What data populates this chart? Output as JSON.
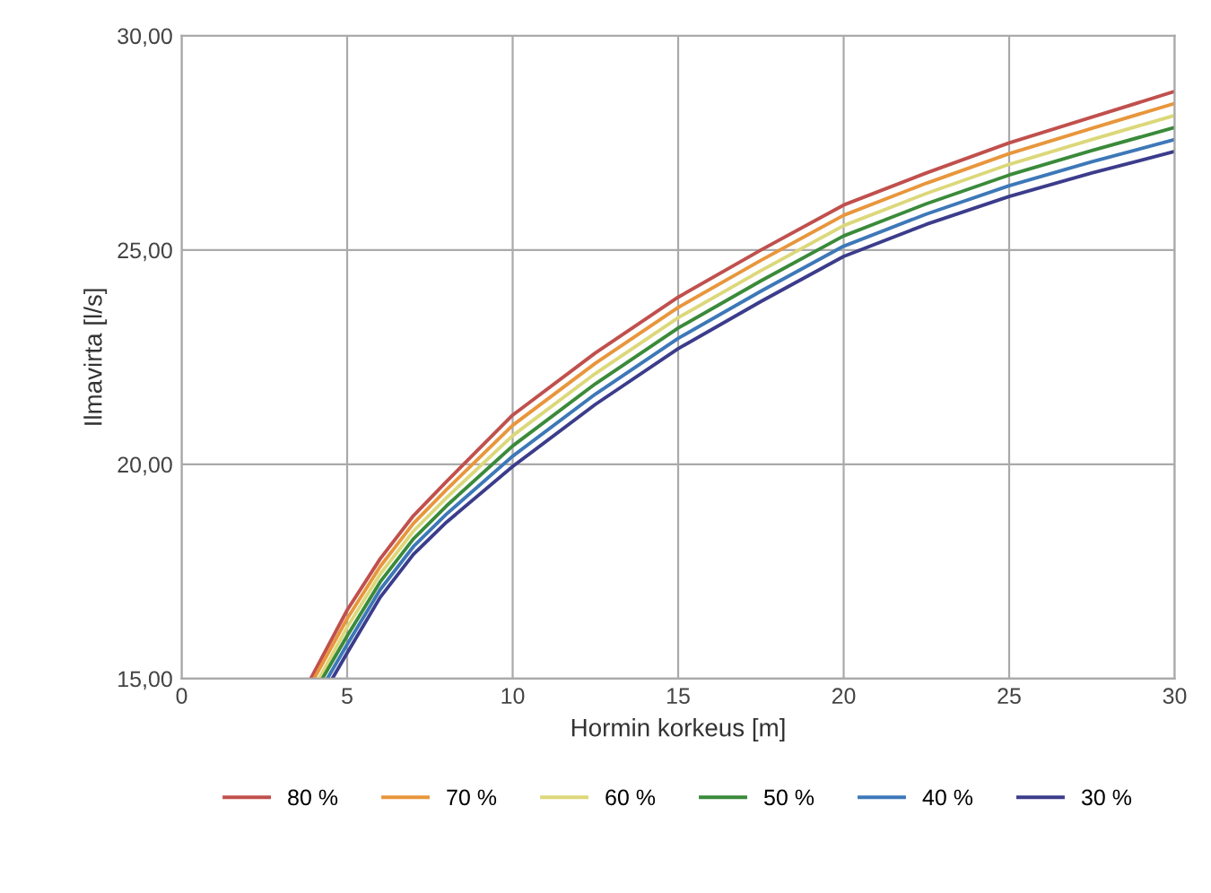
{
  "chart_data": {
    "type": "line",
    "xlabel": "Hormin korkeus [m]",
    "ylabel": "Ilmavirta [l/s]",
    "xlim": [
      0,
      30
    ],
    "xticks": [
      0,
      5,
      10,
      15,
      20,
      25,
      30
    ],
    "ylim": [
      15,
      30
    ],
    "yticks": [
      {
        "value": 15,
        "label": "15,00"
      },
      {
        "value": 20,
        "label": "20,00"
      },
      {
        "value": 25,
        "label": "25,00"
      },
      {
        "value": 30,
        "label": "30,00"
      }
    ],
    "grid": true,
    "legend": "bottom",
    "marker": "none",
    "line_style": "solid",
    "series": [
      {
        "name": "80 %",
        "color": "#c0504d",
        "x": [
          3.9,
          5,
          6,
          7,
          8,
          10,
          12.5,
          15,
          17.5,
          20,
          22.5,
          25,
          27.5,
          30
        ],
        "values": [
          15.0,
          16.6,
          17.8,
          18.8,
          19.6,
          21.15,
          22.6,
          23.9,
          25.0,
          26.05,
          26.8,
          27.5,
          28.1,
          28.7
        ]
      },
      {
        "name": "70 %",
        "color": "#e8963c",
        "x": [
          4.0,
          5,
          6,
          7,
          8,
          10,
          12.5,
          15,
          17.5,
          20,
          22.5,
          25,
          27.5,
          30
        ],
        "values": [
          15.0,
          16.4,
          17.62,
          18.62,
          19.41,
          20.91,
          22.36,
          23.66,
          24.76,
          25.81,
          26.56,
          27.25,
          27.84,
          28.42
        ]
      },
      {
        "name": "60 %",
        "color": "#dcd87a",
        "x": [
          4.15,
          5,
          6,
          7,
          8,
          10,
          12.5,
          15,
          17.5,
          20,
          22.5,
          25,
          27.5,
          30
        ],
        "values": [
          15.0,
          16.2,
          17.44,
          18.44,
          19.22,
          20.67,
          22.12,
          23.42,
          24.52,
          25.57,
          26.32,
          27.0,
          27.58,
          28.14
        ]
      },
      {
        "name": "50 %",
        "color": "#3a8a3a",
        "x": [
          4.25,
          5,
          6,
          7,
          8,
          10,
          12.5,
          15,
          17.5,
          20,
          22.5,
          25,
          27.5,
          30
        ],
        "values": [
          15.0,
          16.0,
          17.26,
          18.26,
          19.03,
          20.43,
          21.88,
          23.18,
          24.28,
          25.33,
          26.08,
          26.75,
          27.32,
          27.86
        ]
      },
      {
        "name": "40 %",
        "color": "#3d78b8",
        "x": [
          4.4,
          5,
          6,
          7,
          8,
          10,
          12.5,
          15,
          17.5,
          20,
          22.5,
          25,
          27.5,
          30
        ],
        "values": [
          15.0,
          15.8,
          17.08,
          18.08,
          18.84,
          20.19,
          21.64,
          22.94,
          24.04,
          25.09,
          25.84,
          26.5,
          27.06,
          27.58
        ]
      },
      {
        "name": "30 %",
        "color": "#3c3c8c",
        "x": [
          4.55,
          5,
          6,
          7,
          8,
          10,
          12.5,
          15,
          17.5,
          20,
          22.5,
          25,
          27.5,
          30
        ],
        "values": [
          15.0,
          15.6,
          16.9,
          17.9,
          18.65,
          19.95,
          21.4,
          22.7,
          23.8,
          24.85,
          25.6,
          26.25,
          26.8,
          27.3
        ]
      }
    ]
  }
}
